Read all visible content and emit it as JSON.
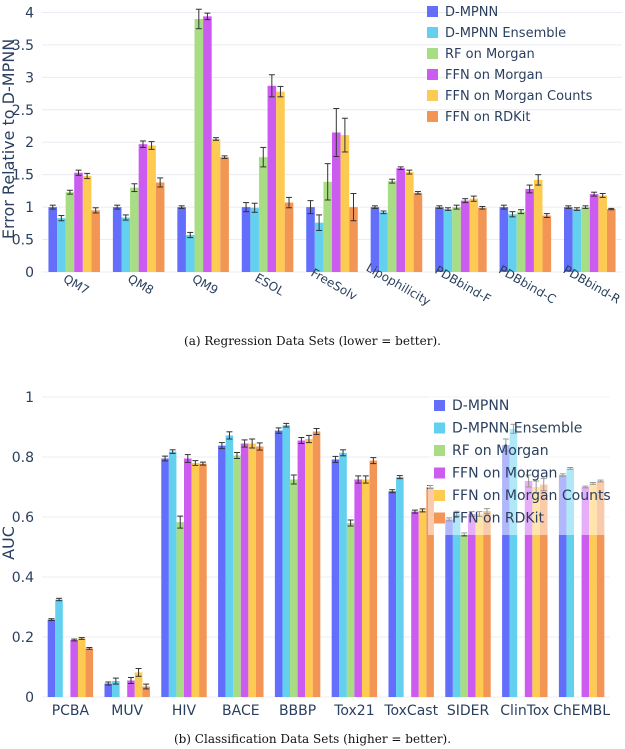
{
  "colors": {
    "series": [
      "#636efa",
      "#62d0ee",
      "#a9dd85",
      "#cc5bf0",
      "#fecb52",
      "#f39655"
    ],
    "axis_text": "#2a3f5f",
    "grid": "#e9ecf2"
  },
  "captions": {
    "regression": "(a) Regression Data Sets (lower = better).",
    "classification": "(b) Classification Data Sets (higher = better)."
  },
  "chart_data": [
    {
      "id": "regression",
      "type": "bar",
      "title": "",
      "xlabel": "",
      "ylabel": "Error Relative to D-MPNN",
      "ylim": [
        0,
        4.1
      ],
      "yticks": [
        "0",
        "0.5",
        "1",
        "1.5",
        "2",
        "2.5",
        "3",
        "3.5",
        "4"
      ],
      "tick_label_rotation": "slanted",
      "legend_position": "top-right",
      "categories": [
        "QM7",
        "QM8",
        "QM9",
        "ESOL",
        "FreeSolv",
        "Lipophilicity",
        "PDBbind-F",
        "PDBbind-C",
        "PDBbind-R"
      ],
      "series": [
        {
          "name": "D-MPNN",
          "values": [
            1.0,
            1.0,
            1.0,
            1.0,
            1.0,
            1.0,
            1.0,
            1.0,
            1.0
          ],
          "errors": [
            0.03,
            0.03,
            0.02,
            0.07,
            0.1,
            0.02,
            0.02,
            0.03,
            0.02
          ]
        },
        {
          "name": "D-MPNN Ensemble",
          "values": [
            0.83,
            0.84,
            0.57,
            0.99,
            0.76,
            0.92,
            0.97,
            0.89,
            0.97
          ],
          "errors": [
            0.04,
            0.04,
            0.04,
            0.07,
            0.12,
            0.02,
            0.02,
            0.04,
            0.02
          ]
        },
        {
          "name": "RF on Morgan",
          "values": [
            1.23,
            1.3,
            3.9,
            1.77,
            1.39,
            1.4,
            1.0,
            0.93,
            1.0
          ],
          "errors": [
            0.03,
            0.06,
            0.15,
            0.15,
            0.28,
            0.03,
            0.03,
            0.03,
            0.02
          ]
        },
        {
          "name": "FFN on Morgan",
          "values": [
            1.53,
            1.97,
            3.94,
            2.87,
            2.15,
            1.6,
            1.1,
            1.28,
            1.2
          ],
          "errors": [
            0.04,
            0.05,
            0.05,
            0.17,
            0.37,
            0.02,
            0.03,
            0.06,
            0.03
          ]
        },
        {
          "name": "FFN on Morgan Counts",
          "values": [
            1.48,
            1.95,
            2.05,
            2.78,
            2.11,
            1.54,
            1.13,
            1.42,
            1.18
          ],
          "errors": [
            0.04,
            0.06,
            0.02,
            0.08,
            0.26,
            0.03,
            0.04,
            0.08,
            0.03
          ]
        },
        {
          "name": "FFN on RDKit",
          "values": [
            0.95,
            1.38,
            1.77,
            1.07,
            1.0,
            1.22,
            0.99,
            0.87,
            0.97
          ],
          "errors": [
            0.04,
            0.07,
            0.02,
            0.08,
            0.21,
            0.02,
            0.02,
            0.03,
            0.01
          ]
        }
      ]
    },
    {
      "id": "classification",
      "type": "bar",
      "title": "",
      "xlabel": "",
      "ylabel": "AUC",
      "ylim": [
        0,
        1.03
      ],
      "yticks": [
        "0",
        "0.2",
        "0.4",
        "0.6",
        "0.8",
        "1"
      ],
      "tick_label_rotation": "none",
      "legend_position": "top-right",
      "categories": [
        "PCBA",
        "MUV",
        "HIV",
        "BACE",
        "BBBP",
        "Tox21",
        "ToxCast",
        "SIDER",
        "ClinTox",
        "ChEMBL"
      ],
      "series": [
        {
          "name": "D-MPNN",
          "values": [
            0.258,
            0.045,
            0.795,
            0.838,
            0.888,
            0.792,
            0.686,
            0.592,
            0.84,
            0.74
          ],
          "errors": [
            0.003,
            0.005,
            0.008,
            0.01,
            0.009,
            0.01,
            0.005,
            0.005,
            0.02,
            0.004
          ]
        },
        {
          "name": "D-MPNN Ensemble",
          "values": [
            0.325,
            0.053,
            0.818,
            0.872,
            0.906,
            0.814,
            0.733,
            0.611,
            0.894,
            0.762
          ],
          "errors": [
            0.004,
            0.01,
            0.006,
            0.012,
            0.006,
            0.01,
            0.005,
            0.008,
            0.015,
            0.003
          ]
        },
        {
          "name": "RF on Morgan",
          "values": [
            0,
            0,
            0.583,
            0.805,
            0.725,
            0.58,
            0,
            0.542,
            0,
            0
          ],
          "errors": [
            0,
            0,
            0.02,
            0.01,
            0.015,
            0.01,
            0,
            0.005,
            0,
            0
          ]
        },
        {
          "name": "FFN on Morgan",
          "values": [
            0.19,
            0.055,
            0.795,
            0.845,
            0.855,
            0.725,
            0.618,
            0.61,
            0.72,
            0.7
          ],
          "errors": [
            0.003,
            0.01,
            0.013,
            0.012,
            0.01,
            0.012,
            0.005,
            0.008,
            0.02,
            0.003
          ]
        },
        {
          "name": "FFN on Morgan Counts",
          "values": [
            0.195,
            0.082,
            0.78,
            0.845,
            0.86,
            0.725,
            0.622,
            0.61,
            0.7,
            0.712
          ],
          "errors": [
            0.003,
            0.013,
            0.008,
            0.015,
            0.012,
            0.012,
            0.005,
            0.008,
            0.02,
            0.003
          ]
        },
        {
          "name": "FFN on RDKit",
          "values": [
            0.162,
            0.035,
            0.778,
            0.835,
            0.885,
            0.788,
            0.7,
            0.62,
            0.708,
            0.72
          ],
          "errors": [
            0.003,
            0.008,
            0.005,
            0.012,
            0.01,
            0.01,
            0.005,
            0.008,
            0.02,
            0.003
          ]
        }
      ]
    }
  ]
}
